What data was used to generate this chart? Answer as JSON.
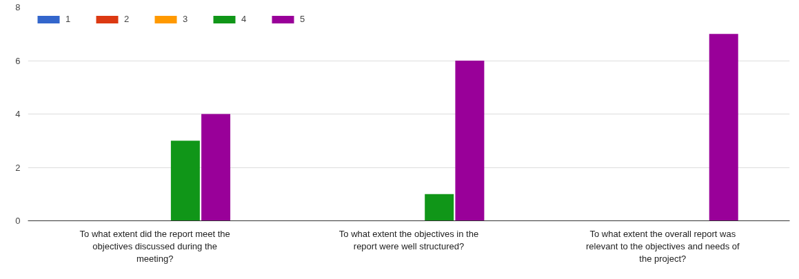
{
  "chart_data": {
    "type": "bar",
    "categories": [
      "To what extent did the report meet the objectives discussed during the meeting?",
      "To what extent the objectives in the report were well structured?",
      "To what extent the overall report was relevant to the objectives and needs of the project?"
    ],
    "series": [
      {
        "name": "1",
        "color": "#3366cc",
        "values": [
          0,
          0,
          0
        ]
      },
      {
        "name": "2",
        "color": "#dc3912",
        "values": [
          0,
          0,
          0
        ]
      },
      {
        "name": "3",
        "color": "#ff9900",
        "values": [
          0,
          0,
          0
        ]
      },
      {
        "name": "4",
        "color": "#109618",
        "values": [
          3,
          1,
          0
        ]
      },
      {
        "name": "5",
        "color": "#990099",
        "values": [
          4,
          6,
          7
        ]
      }
    ],
    "ylim": [
      0,
      8
    ],
    "yticks": [
      0,
      2,
      4,
      6,
      8
    ],
    "grid": "y",
    "legend": "top left"
  }
}
